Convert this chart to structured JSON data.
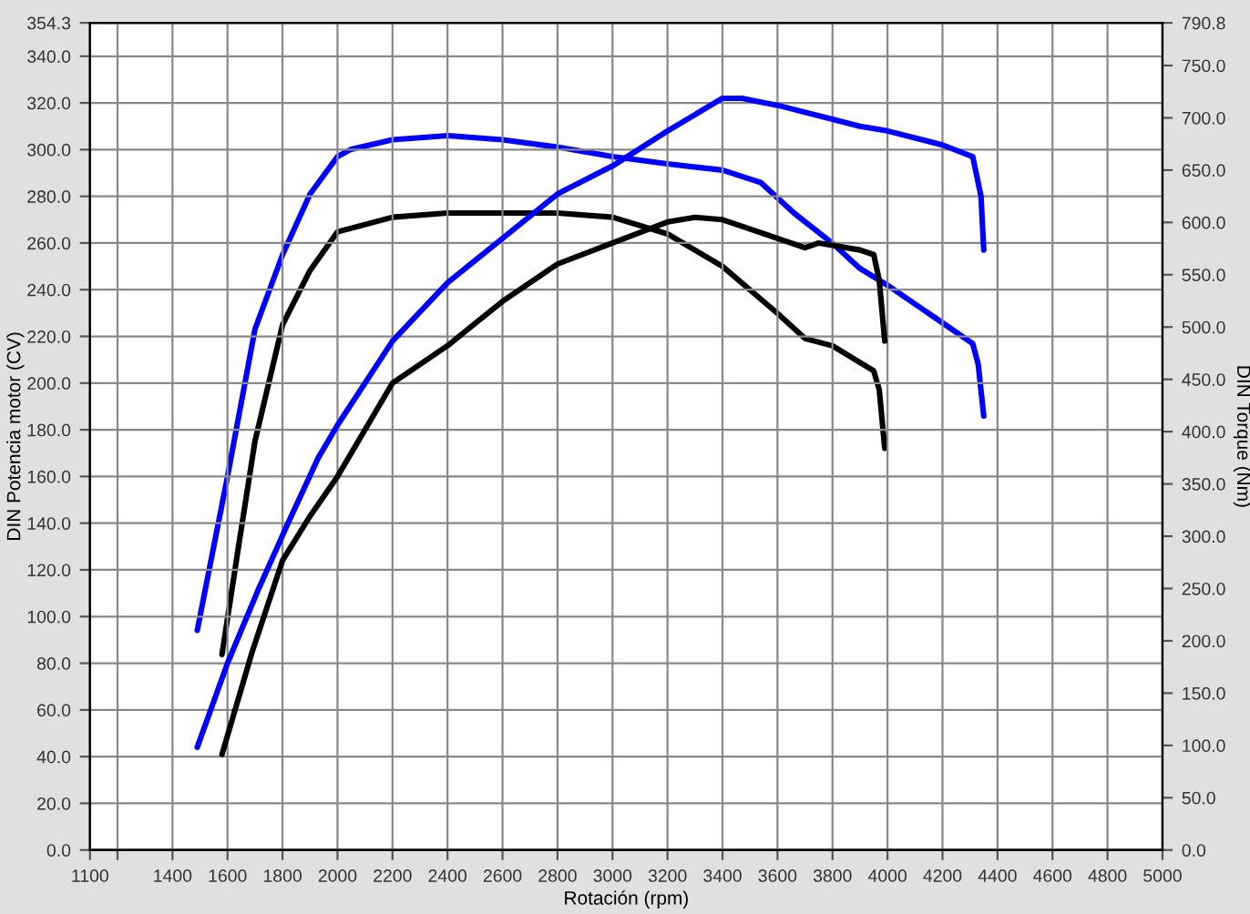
{
  "chart_data": {
    "type": "line",
    "xlabel": "Rotación (rpm)",
    "ylabel": "DIN Potencia motor (CV)",
    "y2label": "DIN Torque (Nm)",
    "xlim": [
      1100,
      5000
    ],
    "xticks": [
      1100,
      {
        "value": 1200,
        "label": null
      },
      1400,
      1600,
      1800,
      2000,
      2200,
      2400,
      2600,
      2800,
      3000,
      3200,
      3400,
      3600,
      3800,
      4000,
      4200,
      4400,
      4600,
      4800,
      5000
    ],
    "ylim": [
      0,
      354.3
    ],
    "yticks": [
      {
        "value": 0,
        "label": "0.0"
      },
      {
        "value": 20,
        "label": "20.0"
      },
      {
        "value": 40,
        "label": "40.0"
      },
      {
        "value": 60,
        "label": "60.0"
      },
      {
        "value": 80,
        "label": "80.0"
      },
      {
        "value": 100,
        "label": "100.0"
      },
      {
        "value": 120,
        "label": "120.0"
      },
      {
        "value": 140,
        "label": "140.0"
      },
      {
        "value": 160,
        "label": "160.0"
      },
      {
        "value": 180,
        "label": "180.0"
      },
      {
        "value": 200,
        "label": "200.0"
      },
      {
        "value": 220,
        "label": "220.0"
      },
      {
        "value": 240,
        "label": "240.0"
      },
      {
        "value": 260,
        "label": "260.0"
      },
      {
        "value": 280,
        "label": "280.0"
      },
      {
        "value": 300,
        "label": "300.0"
      },
      {
        "value": 320,
        "label": "320.0"
      },
      {
        "value": 340,
        "label": "340.0"
      },
      354.3
    ],
    "y2lim": [
      0,
      790.8
    ],
    "y2ticks": [
      {
        "value": 0,
        "label": "0.0"
      },
      {
        "value": 50,
        "label": "50.0"
      },
      {
        "value": 100,
        "label": "100.0"
      },
      {
        "value": 150,
        "label": "150.0"
      },
      {
        "value": 200,
        "label": "200.0"
      },
      {
        "value": 250,
        "label": "250.0"
      },
      {
        "value": 300,
        "label": "300.0"
      },
      {
        "value": 350,
        "label": "350.0"
      },
      {
        "value": 400,
        "label": "400.0"
      },
      {
        "value": 450,
        "label": "450.0"
      },
      {
        "value": 500,
        "label": "500.0"
      },
      {
        "value": 550,
        "label": "550.0"
      },
      {
        "value": 600,
        "label": "600.0"
      },
      {
        "value": 650,
        "label": "650.0"
      },
      {
        "value": 700,
        "label": "700.0"
      },
      {
        "value": 750,
        "label": "750.0"
      },
      790.8
    ],
    "grid": true,
    "series": [
      {
        "color": "#0000ff",
        "x": [
          1490,
          1600,
          1710,
          1820,
          1930,
          2000,
          2200,
          2400,
          2600,
          2800,
          3000,
          3200,
          3400,
          3470,
          3600,
          3800,
          3900,
          4000,
          4200,
          4310,
          4340,
          4350
        ],
        "values": [
          44,
          80,
          111,
          140,
          168,
          182,
          218,
          243,
          262,
          281,
          293,
          308,
          322,
          322,
          319,
          313,
          310,
          308,
          302,
          297,
          280,
          257
        ]
      },
      {
        "color": "#000000",
        "x": [
          1580,
          1690,
          1800,
          1900,
          2000,
          2200,
          2400,
          2600,
          2800,
          3000,
          3200,
          3300,
          3400,
          3600,
          3700,
          3750,
          3800,
          3900,
          3950,
          3970,
          3990
        ],
        "values": [
          41,
          85,
          124,
          143,
          160,
          200,
          216,
          235,
          251,
          260,
          269,
          271,
          270,
          262,
          258,
          260,
          259,
          257,
          255,
          244,
          218
        ]
      },
      {
        "color": "#0000ff",
        "axis": "y2",
        "x": [
          1490,
          1600,
          1700,
          1800,
          1900,
          2000,
          2050,
          2200,
          2400,
          2600,
          2800,
          3000,
          3200,
          3400,
          3540,
          3660,
          3800,
          3900,
          4000,
          4200,
          4310,
          4330,
          4350
        ],
        "values": [
          210,
          357,
          498,
          569,
          627,
          663,
          670,
          679,
          683,
          679,
          672,
          663,
          656,
          650,
          638,
          609,
          580,
          556,
          540,
          504,
          484,
          464,
          415
        ]
      },
      {
        "color": "#000000",
        "axis": "y2",
        "x": [
          1580,
          1640,
          1700,
          1800,
          1900,
          2000,
          2200,
          2400,
          2600,
          2800,
          3000,
          3200,
          3400,
          3600,
          3700,
          3800,
          3950,
          3970,
          3990
        ],
        "values": [
          187,
          290,
          391,
          502,
          554,
          591,
          605,
          609,
          609,
          609,
          605,
          589,
          558,
          513,
          489,
          482,
          458,
          440,
          384
        ]
      }
    ]
  }
}
